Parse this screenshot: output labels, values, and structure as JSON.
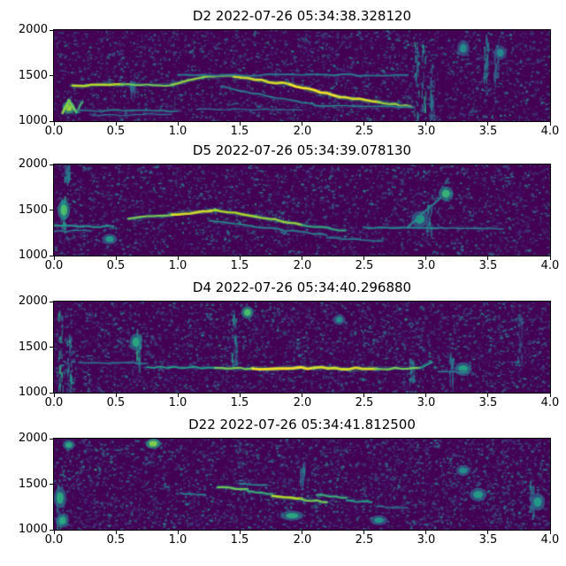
{
  "figure": {
    "background": "#ffffff",
    "colormap": "viridis",
    "base_color": "#440154"
  },
  "chart_data": [
    {
      "type": "heatmap",
      "subtype": "spectrogram",
      "title": "D2 2022-07-26 05:34:38.328120",
      "xlim": [
        0.0,
        4.0
      ],
      "ylim": [
        1000,
        2000
      ],
      "xticks": [
        "0.0",
        "0.5",
        "1.0",
        "1.5",
        "2.0",
        "2.5",
        "3.0",
        "3.5",
        "4.0"
      ],
      "yticks": [
        "2000",
        "1500",
        "1000"
      ],
      "seed": 11,
      "noise_density": 1.0,
      "ridges": [
        [
          0.07,
          1090,
          0.12,
          1230,
          2.5,
          0.85
        ],
        [
          0.12,
          1230,
          0.18,
          1100,
          2.5,
          0.8
        ],
        [
          0.18,
          1100,
          0.23,
          1210,
          2.0,
          0.7
        ],
        [
          0.15,
          1390,
          0.55,
          1405,
          2.5,
          0.9
        ],
        [
          0.55,
          1400,
          0.95,
          1395,
          2.0,
          0.8
        ],
        [
          0.95,
          1400,
          1.2,
          1480,
          2.2,
          0.85
        ],
        [
          1.2,
          1485,
          1.45,
          1495,
          2.2,
          0.85
        ],
        [
          1.45,
          1490,
          1.9,
          1405,
          2.6,
          0.95
        ],
        [
          1.9,
          1405,
          2.3,
          1265,
          2.8,
          1.0
        ],
        [
          2.3,
          1265,
          2.62,
          1210,
          2.6,
          0.95
        ],
        [
          2.62,
          1210,
          2.88,
          1160,
          2.2,
          0.85
        ],
        [
          1.0,
          1510,
          2.85,
          1505,
          1.6,
          0.45
        ],
        [
          1.35,
          1385,
          1.75,
          1265,
          1.4,
          0.5
        ],
        [
          1.75,
          1265,
          2.1,
          1185,
          1.4,
          0.5
        ],
        [
          2.1,
          1170,
          2.9,
          1150,
          1.4,
          0.5
        ],
        [
          0.2,
          1120,
          1.0,
          1112,
          1.3,
          0.5
        ],
        [
          0.3,
          1068,
          0.95,
          1075,
          1.1,
          0.42
        ],
        [
          1.15,
          1130,
          2.0,
          1122,
          1.1,
          0.4
        ]
      ],
      "bursts": [
        [
          2.92,
          1060,
          1950,
          0.5
        ],
        [
          2.98,
          1100,
          1850,
          0.48
        ],
        [
          3.04,
          1050,
          1650,
          0.42
        ],
        [
          3.48,
          1500,
          1960,
          0.4
        ],
        [
          3.56,
          1430,
          1900,
          0.35
        ],
        [
          0.63,
          1320,
          1460,
          0.35
        ]
      ],
      "blobs": [
        [
          0.12,
          1150,
          0.05,
          70,
          0.75
        ],
        [
          3.3,
          1800,
          0.05,
          90,
          0.4
        ],
        [
          3.6,
          1750,
          0.05,
          80,
          0.38
        ]
      ]
    },
    {
      "type": "heatmap",
      "subtype": "spectrogram",
      "title": "D5 2022-07-26 05:34:39.078130",
      "xlim": [
        0.0,
        4.0
      ],
      "ylim": [
        1000,
        2000
      ],
      "xticks": [
        "0.0",
        "0.5",
        "1.0",
        "1.5",
        "2.0",
        "2.5",
        "3.0",
        "3.5",
        "4.0"
      ],
      "yticks": [
        "2000",
        "1500",
        "1000"
      ],
      "seed": 22,
      "noise_density": 1.0,
      "ridges": [
        [
          0.6,
          1405,
          0.95,
          1445,
          2.2,
          0.8
        ],
        [
          0.95,
          1450,
          1.3,
          1500,
          2.6,
          0.95
        ],
        [
          1.3,
          1500,
          1.62,
          1430,
          2.4,
          0.9
        ],
        [
          1.62,
          1430,
          2.0,
          1335,
          2.4,
          0.85
        ],
        [
          2.0,
          1335,
          2.35,
          1275,
          1.8,
          0.65
        ],
        [
          1.25,
          1385,
          1.7,
          1305,
          1.4,
          0.55
        ],
        [
          1.7,
          1305,
          2.2,
          1225,
          1.4,
          0.5
        ],
        [
          2.2,
          1195,
          2.65,
          1160,
          1.3,
          0.48
        ],
        [
          0.0,
          1330,
          0.48,
          1320,
          1.8,
          0.55
        ],
        [
          0.0,
          1265,
          0.3,
          1270,
          1.4,
          0.45
        ],
        [
          2.5,
          1310,
          3.1,
          1300,
          1.7,
          0.5
        ],
        [
          3.1,
          1308,
          3.62,
          1292,
          1.4,
          0.45
        ],
        [
          2.85,
          1305,
          3.0,
          1495,
          1.6,
          0.55
        ],
        [
          3.0,
          1495,
          3.12,
          1640,
          1.6,
          0.5
        ]
      ],
      "bursts": [
        [
          0.07,
          1340,
          1660,
          0.5
        ],
        [
          3.02,
          1300,
          1600,
          0.4
        ],
        [
          0.1,
          1850,
          2000,
          0.4
        ]
      ],
      "blobs": [
        [
          0.08,
          1500,
          0.05,
          110,
          0.6
        ],
        [
          3.16,
          1680,
          0.06,
          80,
          0.55
        ],
        [
          2.95,
          1400,
          0.07,
          90,
          0.45
        ],
        [
          0.45,
          1180,
          0.06,
          60,
          0.45
        ]
      ]
    },
    {
      "type": "heatmap",
      "subtype": "spectrogram",
      "title": "D4 2022-07-26 05:34:40.296880",
      "xlim": [
        0.0,
        4.0
      ],
      "ylim": [
        1000,
        2000
      ],
      "xticks": [
        "0.0",
        "0.5",
        "1.0",
        "1.5",
        "2.0",
        "2.5",
        "3.0",
        "3.5",
        "4.0"
      ],
      "yticks": [
        "2000",
        "1500",
        "1000"
      ],
      "seed": 33,
      "noise_density": 1.25,
      "ridges": [
        [
          0.75,
          1280,
          1.3,
          1272,
          1.8,
          0.6
        ],
        [
          1.3,
          1272,
          1.6,
          1266,
          2.2,
          0.8
        ],
        [
          1.6,
          1266,
          2.1,
          1272,
          2.8,
          1.0
        ],
        [
          2.1,
          1272,
          2.6,
          1262,
          2.8,
          0.95
        ],
        [
          2.6,
          1262,
          2.95,
          1272,
          2.2,
          0.8
        ],
        [
          2.95,
          1272,
          3.05,
          1335,
          1.8,
          0.6
        ],
        [
          0.2,
          1332,
          0.75,
          1322,
          1.3,
          0.45
        ],
        [
          3.1,
          1230,
          3.35,
          1225,
          1.3,
          0.45
        ]
      ],
      "bursts": [
        [
          0.05,
          1020,
          1900,
          0.48
        ],
        [
          0.12,
          1050,
          1700,
          0.4
        ],
        [
          0.68,
          1300,
          1780,
          0.5
        ],
        [
          1.45,
          1320,
          1950,
          0.45
        ],
        [
          2.88,
          1100,
          1420,
          0.38
        ],
        [
          3.2,
          1130,
          1460,
          0.38
        ],
        [
          3.75,
          1400,
          1900,
          0.35
        ]
      ],
      "blobs": [
        [
          1.56,
          1880,
          0.05,
          70,
          0.6
        ],
        [
          0.66,
          1555,
          0.05,
          95,
          0.5
        ],
        [
          3.3,
          1260,
          0.07,
          75,
          0.48
        ],
        [
          2.3,
          1800,
          0.05,
          60,
          0.4
        ]
      ]
    },
    {
      "type": "heatmap",
      "subtype": "spectrogram",
      "title": "D22 2022-07-26 05:34:41.812500",
      "xlim": [
        0.0,
        4.0
      ],
      "ylim": [
        1000,
        2000
      ],
      "xticks": [
        "0.0",
        "0.5",
        "1.0",
        "1.5",
        "2.0",
        "2.5",
        "3.0",
        "3.5",
        "4.0"
      ],
      "yticks": [
        "2000",
        "1500",
        "1000"
      ],
      "seed": 44,
      "noise_density": 1.3,
      "ridges": [
        [
          1.32,
          1465,
          1.56,
          1445,
          2.2,
          0.78
        ],
        [
          1.56,
          1425,
          1.76,
          1395,
          1.8,
          0.68
        ],
        [
          1.76,
          1372,
          2.0,
          1342,
          2.6,
          0.9
        ],
        [
          2.0,
          1332,
          2.2,
          1302,
          2.2,
          0.8
        ],
        [
          2.12,
          1382,
          2.36,
          1352,
          1.8,
          0.68
        ],
        [
          2.36,
          1322,
          2.56,
          1302,
          1.7,
          0.6
        ],
        [
          1.02,
          1402,
          1.22,
          1382,
          1.4,
          0.5
        ],
        [
          1.5,
          1502,
          1.72,
          1492,
          1.3,
          0.52
        ],
        [
          2.6,
          1252,
          2.85,
          1242,
          1.2,
          0.45
        ]
      ],
      "bursts": [
        [
          0.03,
          1050,
          1500,
          0.45
        ],
        [
          3.85,
          1150,
          1560,
          0.38
        ],
        [
          2.0,
          1550,
          1750,
          0.35
        ]
      ],
      "blobs": [
        [
          0.8,
          1945,
          0.06,
          55,
          0.7
        ],
        [
          0.12,
          1930,
          0.05,
          55,
          0.5
        ],
        [
          0.05,
          1350,
          0.05,
          115,
          0.5
        ],
        [
          0.07,
          1100,
          0.05,
          75,
          0.5
        ],
        [
          1.92,
          1155,
          0.09,
          55,
          0.5
        ],
        [
          3.42,
          1385,
          0.07,
          75,
          0.45
        ],
        [
          3.9,
          1305,
          0.06,
          95,
          0.45
        ],
        [
          2.62,
          1105,
          0.07,
          55,
          0.42
        ],
        [
          3.3,
          1650,
          0.06,
          60,
          0.4
        ]
      ]
    }
  ]
}
